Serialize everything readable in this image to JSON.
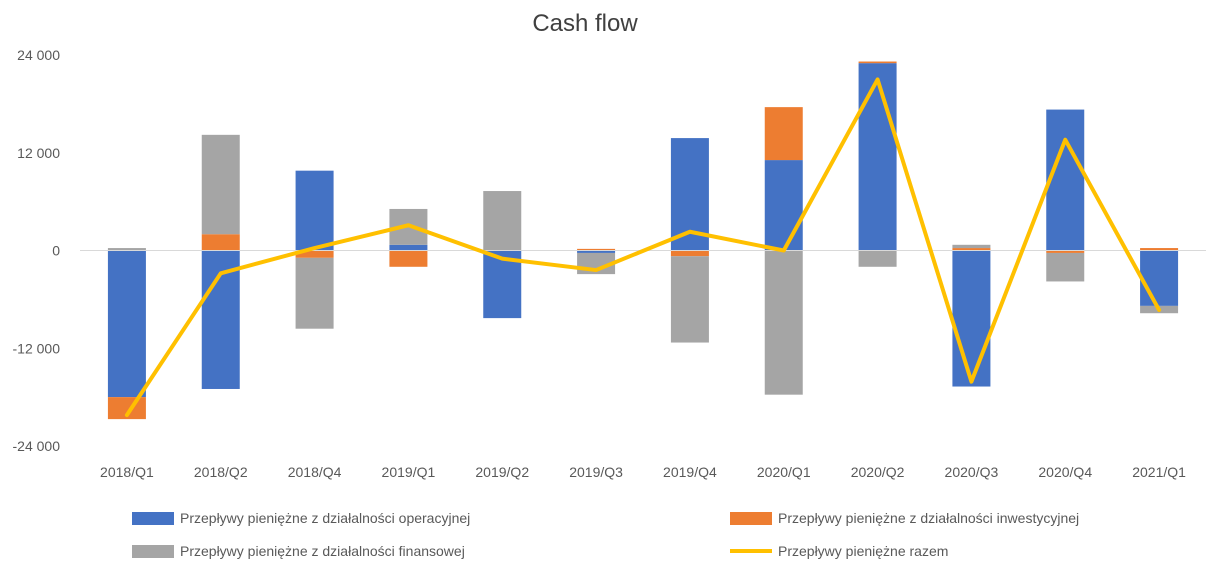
{
  "chart_data": {
    "type": "bar",
    "stacked": true,
    "title": "Cash flow",
    "xlabel": "",
    "ylabel": "",
    "ylim": [
      -24000,
      24000
    ],
    "yticks": [
      24000,
      12000,
      0,
      -12000,
      -24000
    ],
    "ytick_labels": [
      "24 000",
      "12 000",
      "0",
      "-12 000",
      "-24 000"
    ],
    "grid": false,
    "legend_position": "bottom",
    "categories": [
      "2018/Q1",
      "2018/Q2",
      "2018/Q4",
      "2019/Q1",
      "2019/Q2",
      "2019/Q3",
      "2019/Q4",
      "2020/Q1",
      "2020/Q2",
      "2020/Q3",
      "2020/Q4",
      "2021/Q1"
    ],
    "series": [
      {
        "name": "Przepływy pieniężne z działalności operacyjnej",
        "type": "bar",
        "color": "#4472C4",
        "values": [
          -18000,
          -17000,
          9800,
          700,
          -8300,
          -300,
          13800,
          11100,
          23000,
          -16700,
          17300,
          -6800
        ]
      },
      {
        "name": "Przepływy pieniężne z działalności inwestycyjnej",
        "type": "bar",
        "color": "#ED7D31",
        "values": [
          -2700,
          2000,
          -900,
          -2000,
          0,
          200,
          -700,
          6500,
          200,
          300,
          -300,
          300
        ]
      },
      {
        "name": "Przepływy pieniężne z działalności finansowej",
        "type": "bar",
        "color": "#A5A5A5",
        "values": [
          300,
          12200,
          -8700,
          4400,
          7300,
          -2600,
          -10600,
          -17700,
          -2000,
          400,
          -3500,
          -900
        ]
      },
      {
        "name": "Przepływy pieniężne razem",
        "type": "line",
        "color": "#FFC000",
        "values": [
          -20200,
          -2800,
          300,
          3100,
          -1000,
          -2400,
          2300,
          0,
          21000,
          -16100,
          13600,
          -7300
        ]
      }
    ]
  }
}
